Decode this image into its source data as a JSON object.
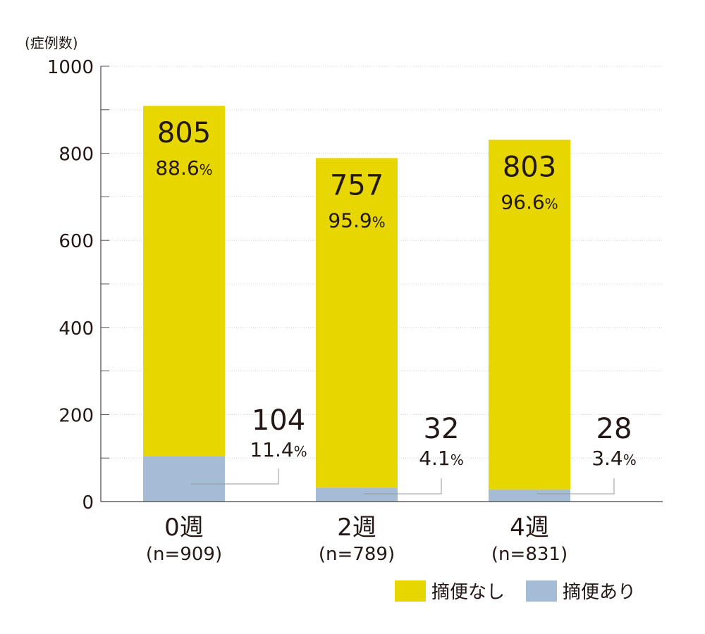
{
  "chart_data": {
    "type": "bar",
    "stacked": true,
    "ylabel": "(症例数)",
    "ylim": [
      0,
      1000
    ],
    "yticks": [
      0,
      200,
      400,
      600,
      800,
      1000
    ],
    "grid": true,
    "categories": [
      "0週",
      "2週",
      "4週"
    ],
    "category_sublabels": [
      "(n=909)",
      "(n=789)",
      "(n=831)"
    ],
    "series": [
      {
        "name": "摘便あり",
        "color": "#a5bcd6",
        "values": [
          104,
          32,
          28
        ],
        "percent_labels": [
          "11.4",
          "4.1",
          "3.4"
        ]
      },
      {
        "name": "摘便なし",
        "color": "#e8d600",
        "values": [
          805,
          757,
          803
        ],
        "percent_labels": [
          "88.6",
          "95.9",
          "96.6"
        ]
      }
    ],
    "percent_sign": "%",
    "legend_position": "bottom-right"
  }
}
